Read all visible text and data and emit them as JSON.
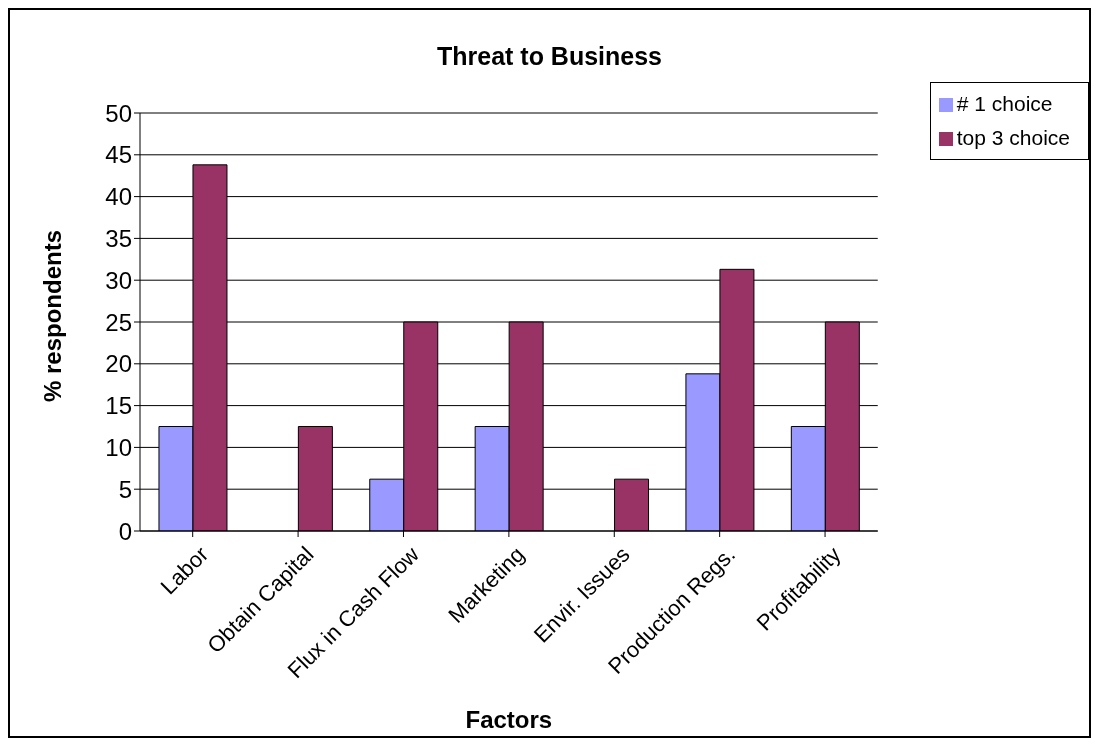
{
  "chart_data": {
    "type": "bar",
    "title": "Threat to Business",
    "xlabel": "Factors",
    "ylabel": "% respondents",
    "categories": [
      "Labor",
      "Obtain Capital",
      "Flux in Cash Flow",
      "Marketing",
      "Envir. Issues",
      "Production Regs.",
      "Profitability"
    ],
    "series": [
      {
        "name": "# 1 choice",
        "color": "#9999ff",
        "values": [
          12.5,
          0,
          6.2,
          12.5,
          0,
          18.8,
          12.5
        ]
      },
      {
        "name": "top 3 choice",
        "color": "#993366",
        "values": [
          43.8,
          12.5,
          25,
          25,
          6.2,
          31.3,
          25
        ]
      }
    ],
    "ylim": [
      0,
      50
    ],
    "yticks": [
      0,
      5,
      10,
      15,
      20,
      25,
      30,
      35,
      40,
      45,
      50
    ],
    "grid": "y",
    "legend": "top right"
  }
}
